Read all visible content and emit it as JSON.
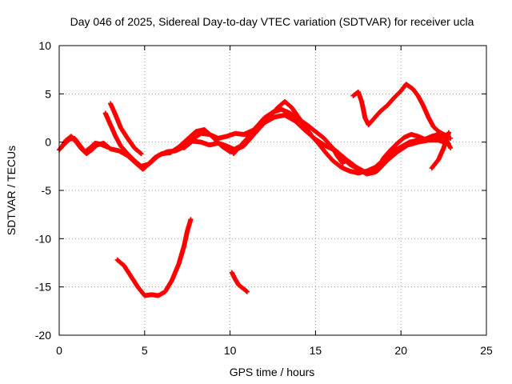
{
  "chart_data": {
    "type": "scatter",
    "title": "Day 046 of 2025, Sidereal Day-to-day VTEC variation (SDTVAR) for receiver ucla",
    "xlabel": "GPS time / hours",
    "ylabel": "SDTVAR / TECUs",
    "xlim": [
      0,
      25
    ],
    "ylim": [
      -20,
      10
    ],
    "xticks": [
      "0",
      "5",
      "10",
      "15",
      "20",
      "25"
    ],
    "yticks": [
      "10",
      "5",
      "0",
      "-5",
      "-10",
      "-15",
      "-20"
    ],
    "grid": true,
    "marker": "+",
    "series": [
      {
        "name": "s1",
        "color": "#ff0000",
        "points": [
          [
            0.0,
            -0.8
          ],
          [
            0.3,
            -0.2
          ],
          [
            0.6,
            0.3
          ],
          [
            0.9,
            0.4
          ],
          [
            1.2,
            -0.3
          ],
          [
            1.5,
            -1.0
          ],
          [
            1.8,
            -0.6
          ],
          [
            2.1,
            -0.1
          ],
          [
            2.4,
            -0.2
          ],
          [
            2.8,
            -0.5
          ]
        ]
      },
      {
        "name": "s2",
        "color": "#ff0000",
        "points": [
          [
            0.1,
            -0.6
          ],
          [
            0.4,
            0.2
          ],
          [
            0.7,
            0.6
          ],
          [
            1.0,
            0.0
          ],
          [
            1.3,
            -0.7
          ],
          [
            1.6,
            -1.2
          ],
          [
            1.9,
            -0.8
          ],
          [
            2.2,
            -0.3
          ],
          [
            2.6,
            -0.1
          ],
          [
            3.0,
            -0.7
          ],
          [
            3.5,
            -0.9
          ],
          [
            4.0,
            -1.4
          ],
          [
            4.5,
            -2.2
          ],
          [
            4.9,
            -2.8
          ],
          [
            5.3,
            -2.2
          ],
          [
            5.8,
            -1.4
          ],
          [
            6.3,
            -1.0
          ],
          [
            6.8,
            -0.9
          ],
          [
            7.3,
            -0.5
          ],
          [
            7.8,
            0.3
          ],
          [
            8.3,
            0.9
          ],
          [
            8.8,
            0.8
          ],
          [
            9.3,
            0.4
          ],
          [
            9.8,
            0.6
          ],
          [
            10.3,
            0.9
          ],
          [
            10.8,
            0.8
          ],
          [
            11.3,
            1.2
          ]
        ]
      },
      {
        "name": "s3",
        "color": "#ff0000",
        "points": [
          [
            2.7,
            3.0
          ],
          [
            3.0,
            1.8
          ],
          [
            3.3,
            0.6
          ],
          [
            3.6,
            -0.4
          ],
          [
            4.0,
            -1.2
          ],
          [
            4.4,
            -1.9
          ],
          [
            4.8,
            -2.5
          ],
          [
            5.2,
            -2.3
          ],
          [
            5.6,
            -1.6
          ],
          [
            6.0,
            -1.2
          ],
          [
            6.5,
            -1.1
          ],
          [
            7.0,
            -0.5
          ],
          [
            7.5,
            0.3
          ],
          [
            8.0,
            1.1
          ],
          [
            8.5,
            1.3
          ],
          [
            9.0,
            0.5
          ],
          [
            9.5,
            -0.4
          ],
          [
            10.0,
            -1.0
          ],
          [
            10.5,
            -0.5
          ]
        ]
      },
      {
        "name": "s4",
        "color": "#ff0000",
        "points": [
          [
            3.0,
            4.0
          ],
          [
            3.3,
            2.8
          ],
          [
            3.6,
            1.5
          ],
          [
            4.0,
            0.4
          ],
          [
            4.4,
            -0.6
          ],
          [
            4.8,
            -1.2
          ]
        ]
      },
      {
        "name": "s5",
        "color": "#ff0000",
        "points": [
          [
            7.3,
            -0.6
          ],
          [
            7.8,
            0.1
          ],
          [
            8.3,
            0.0
          ],
          [
            8.8,
            -0.3
          ],
          [
            9.3,
            -0.1
          ],
          [
            9.8,
            -0.4
          ],
          [
            10.3,
            -0.8
          ],
          [
            10.8,
            -0.4
          ],
          [
            11.3,
            0.6
          ],
          [
            11.8,
            1.6
          ],
          [
            12.3,
            2.6
          ],
          [
            12.8,
            3.6
          ],
          [
            13.2,
            4.2
          ],
          [
            13.6,
            3.6
          ],
          [
            14.0,
            2.6
          ],
          [
            14.4,
            1.6
          ],
          [
            14.8,
            0.6
          ],
          [
            15.2,
            -0.2
          ],
          [
            15.6,
            -1.1
          ],
          [
            16.0,
            -1.9
          ],
          [
            16.5,
            -2.6
          ],
          [
            17.0,
            -3.0
          ],
          [
            17.5,
            -3.2
          ],
          [
            18.0,
            -3.0
          ],
          [
            18.5,
            -2.6
          ],
          [
            19.0,
            -1.8
          ],
          [
            19.5,
            -1.0
          ],
          [
            20.0,
            -0.5
          ],
          [
            20.5,
            0.0
          ],
          [
            21.0,
            0.2
          ],
          [
            21.5,
            0.3
          ],
          [
            22.0,
            0.5
          ],
          [
            22.5,
            0.6
          ],
          [
            22.9,
            0.4
          ]
        ]
      },
      {
        "name": "s6",
        "color": "#ff0000",
        "points": [
          [
            10.2,
            -1.2
          ],
          [
            10.8,
            0.0
          ],
          [
            11.4,
            1.1
          ],
          [
            12.0,
            2.0
          ],
          [
            12.6,
            2.6
          ],
          [
            13.2,
            2.8
          ],
          [
            13.8,
            2.2
          ],
          [
            14.4,
            1.2
          ],
          [
            15.0,
            0.3
          ],
          [
            15.6,
            -0.4
          ],
          [
            16.2,
            -0.9
          ],
          [
            16.8,
            -1.8
          ],
          [
            17.4,
            -2.6
          ],
          [
            18.0,
            -3.2
          ],
          [
            18.6,
            -3.0
          ],
          [
            19.2,
            -1.9
          ],
          [
            19.8,
            -1.0
          ],
          [
            20.4,
            -0.3
          ],
          [
            21.0,
            0.0
          ],
          [
            21.6,
            0.2
          ],
          [
            22.2,
            0.2
          ],
          [
            22.8,
            -0.2
          ]
        ]
      },
      {
        "name": "s7",
        "color": "#ff0000",
        "points": [
          [
            11.0,
            0.6
          ],
          [
            11.5,
            1.5
          ],
          [
            12.0,
            2.5
          ],
          [
            12.5,
            3.1
          ],
          [
            13.0,
            3.4
          ],
          [
            13.5,
            3.0
          ],
          [
            14.0,
            2.4
          ],
          [
            14.5,
            1.8
          ],
          [
            15.0,
            1.1
          ],
          [
            15.5,
            0.4
          ],
          [
            16.0,
            -0.6
          ],
          [
            16.5,
            -1.5
          ],
          [
            17.0,
            -2.3
          ],
          [
            17.5,
            -2.8
          ],
          [
            18.0,
            -3.3
          ],
          [
            18.5,
            -3.1
          ],
          [
            19.0,
            -2.2
          ],
          [
            19.5,
            -1.2
          ]
        ]
      },
      {
        "name": "s8",
        "color": "#ff0000",
        "points": [
          [
            16.0,
            -0.6
          ],
          [
            16.3,
            -1.5
          ],
          [
            16.6,
            -2.2
          ]
        ]
      },
      {
        "name": "s9",
        "color": "#ff0000",
        "points": [
          [
            17.2,
            4.8
          ],
          [
            17.5,
            5.2
          ],
          [
            17.7,
            4.2
          ],
          [
            17.9,
            2.5
          ],
          [
            18.1,
            1.8
          ],
          [
            18.4,
            2.4
          ],
          [
            18.8,
            3.2
          ],
          [
            19.2,
            3.8
          ],
          [
            19.6,
            4.6
          ],
          [
            20.0,
            5.3
          ],
          [
            20.3,
            6.0
          ],
          [
            20.7,
            5.5
          ],
          [
            21.0,
            4.8
          ],
          [
            21.3,
            3.8
          ],
          [
            21.6,
            2.6
          ],
          [
            21.9,
            1.6
          ],
          [
            22.2,
            1.1
          ],
          [
            22.5,
            0.8
          ],
          [
            22.8,
            0.6
          ]
        ]
      },
      {
        "name": "s10",
        "color": "#ff0000",
        "points": [
          [
            18.6,
            -2.8
          ],
          [
            19.0,
            -1.6
          ],
          [
            19.4,
            -0.8
          ],
          [
            19.8,
            -0.1
          ],
          [
            20.2,
            0.5
          ],
          [
            20.6,
            0.8
          ],
          [
            21.0,
            0.6
          ],
          [
            21.4,
            0.3
          ],
          [
            21.8,
            0.6
          ],
          [
            22.2,
            0.8
          ],
          [
            22.6,
            0.4
          ],
          [
            22.9,
            -0.6
          ]
        ]
      },
      {
        "name": "s11",
        "color": "#ff0000",
        "points": [
          [
            21.8,
            -2.7
          ],
          [
            22.2,
            -1.8
          ],
          [
            22.5,
            -0.6
          ],
          [
            22.7,
            0.5
          ],
          [
            22.8,
            1.0
          ]
        ]
      },
      {
        "name": "s12",
        "color": "#ff0000",
        "points": [
          [
            3.4,
            -12.2
          ],
          [
            3.8,
            -12.8
          ],
          [
            4.2,
            -13.9
          ],
          [
            4.6,
            -15.0
          ],
          [
            5.0,
            -15.9
          ],
          [
            5.4,
            -15.8
          ],
          [
            5.8,
            -15.9
          ],
          [
            6.2,
            -15.5
          ],
          [
            6.6,
            -14.3
          ],
          [
            7.0,
            -12.6
          ],
          [
            7.3,
            -10.8
          ],
          [
            7.5,
            -9.2
          ],
          [
            7.7,
            -8.0
          ]
        ]
      },
      {
        "name": "s13",
        "color": "#ff0000",
        "points": [
          [
            10.1,
            -13.5
          ],
          [
            10.3,
            -14.2
          ],
          [
            10.5,
            -14.8
          ],
          [
            10.8,
            -15.2
          ],
          [
            11.0,
            -15.5
          ]
        ]
      }
    ]
  }
}
